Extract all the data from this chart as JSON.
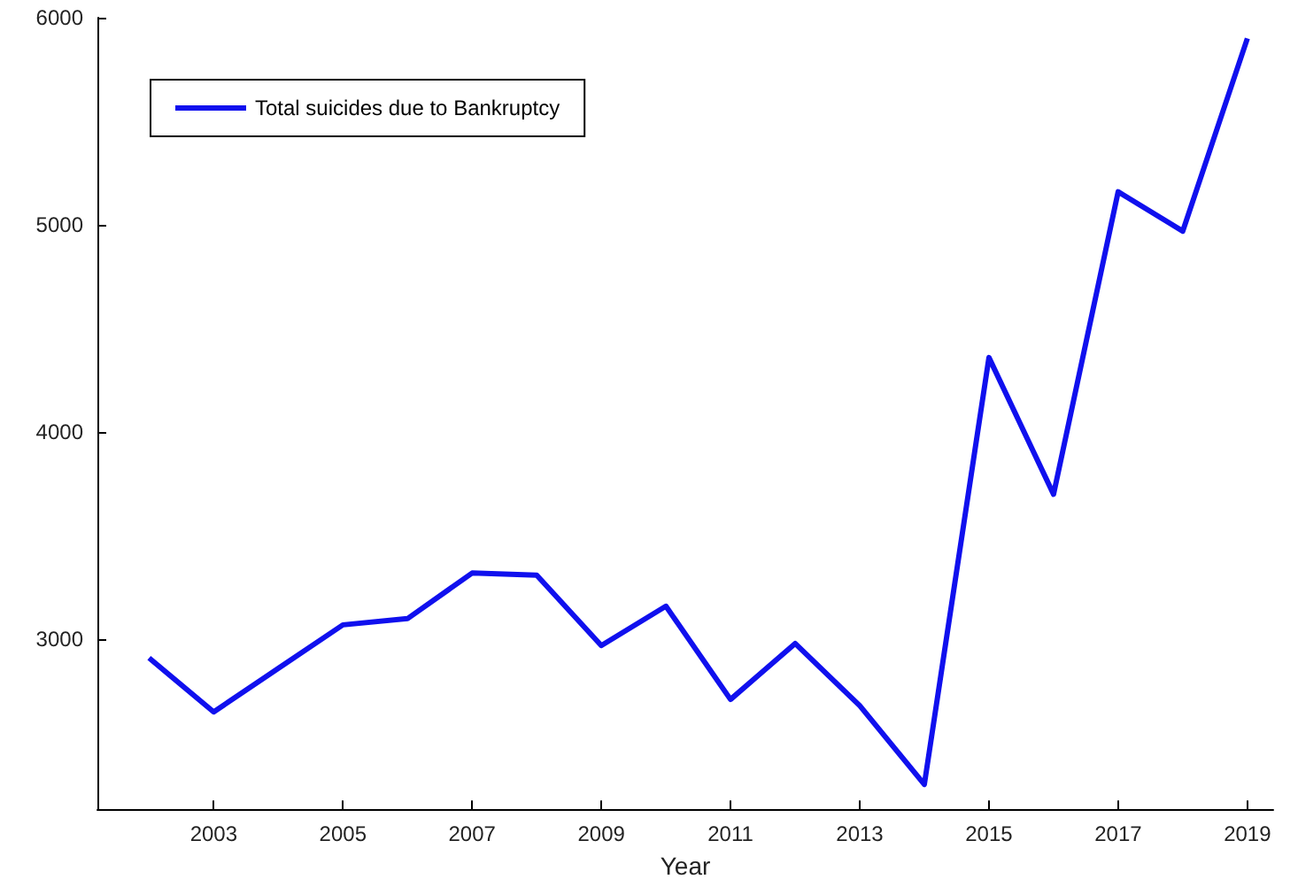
{
  "chart_data": {
    "type": "line",
    "xlabel": "Year",
    "x": [
      2002,
      2003,
      2004,
      2005,
      2006,
      2007,
      2008,
      2009,
      2010,
      2011,
      2012,
      2013,
      2014,
      2015,
      2016,
      2017,
      2018,
      2019
    ],
    "series": [
      {
        "name": "Total suicides due to Bankruptcy",
        "color": "#1010ee",
        "values": [
          2910,
          2650,
          2860,
          3070,
          3100,
          3320,
          3310,
          2970,
          3160,
          2710,
          2980,
          2680,
          2300,
          4360,
          3700,
          5160,
          4970,
          5900
        ]
      }
    ],
    "xlim": [
      2001.2,
      2019.4
    ],
    "xticks": [
      2003,
      2005,
      2007,
      2009,
      2011,
      2013,
      2015,
      2017,
      2019
    ],
    "ylim": [
      2180,
      6000
    ],
    "yticks": [
      3000,
      4000,
      5000,
      6000
    ],
    "grid": false,
    "legend": "top left",
    "marker": "none",
    "line_style": "solid"
  }
}
